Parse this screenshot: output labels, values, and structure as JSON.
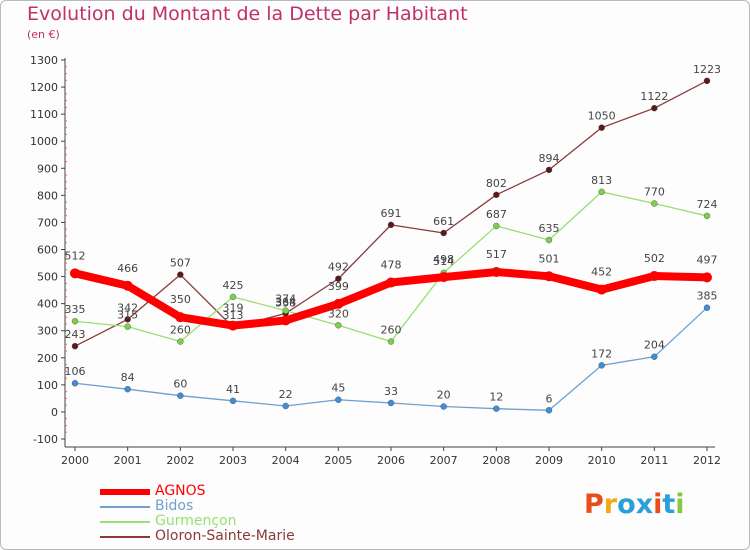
{
  "title": "Evolution du Montant de la Dette par Habitant",
  "subtitle": "(en €)",
  "logo": {
    "text": "Proxiti",
    "colors": [
      "#e84e1b",
      "#f6a81c",
      "#2a9fd8",
      "#2a9fd8",
      "#e84e1b",
      "#2a9fd8",
      "#8cc63f"
    ]
  },
  "chart_data": {
    "type": "line",
    "x": [
      2000,
      2001,
      2002,
      2003,
      2004,
      2005,
      2006,
      2007,
      2008,
      2009,
      2010,
      2011,
      2012
    ],
    "ylim": [
      -100,
      1300
    ],
    "yticks": [
      -100,
      0,
      100,
      200,
      300,
      400,
      500,
      600,
      700,
      800,
      900,
      1000,
      1100,
      1200,
      1300
    ],
    "grid": false,
    "legend_position": "bottom-left",
    "series": [
      {
        "name": "AGNOS",
        "color": "#ff0000",
        "point_color": "#ff0000",
        "values": [
          512,
          466,
          350,
          319,
          338,
          399,
          478,
          498,
          517,
          501,
          452,
          502,
          497
        ]
      },
      {
        "name": "Bidos",
        "color": "#6fa0d0",
        "point_color": "#3f8fd8",
        "values": [
          106,
          84,
          60,
          41,
          22,
          45,
          33,
          20,
          12,
          6,
          172,
          204,
          385
        ]
      },
      {
        "name": "Gurmençon",
        "color": "#99e070",
        "point_color": "#7ed04a",
        "values": [
          335,
          315,
          260,
          425,
          374,
          320,
          260,
          514,
          687,
          635,
          813,
          770,
          724
        ]
      },
      {
        "name": "Oloron-Sainte-Marie",
        "color": "#8a3a3a",
        "point_color": "#5a1a1a",
        "values": [
          243,
          342,
          507,
          313,
          364,
          492,
          691,
          661,
          802,
          894,
          1050,
          1122,
          1223
        ]
      }
    ]
  }
}
